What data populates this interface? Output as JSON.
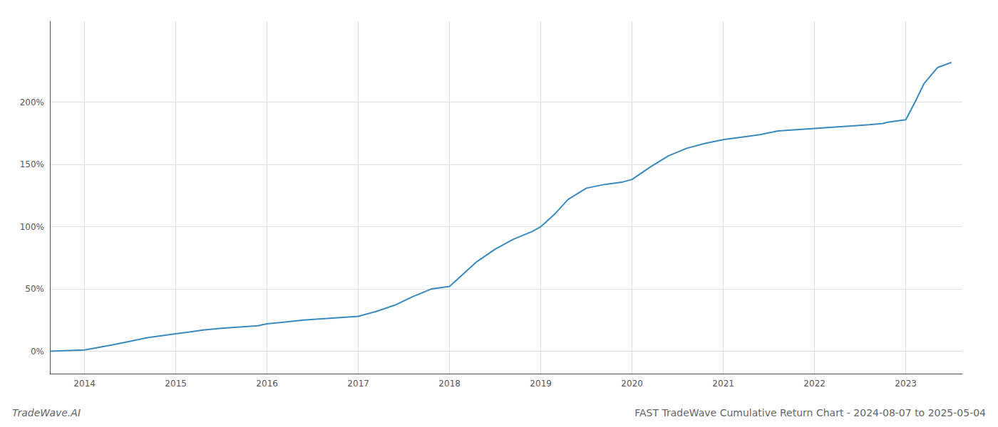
{
  "chart_data": {
    "type": "line",
    "title": "FAST TradeWave Cumulative Return Chart - 2024-08-07 to 2025-05-04",
    "annotations": [
      "TradeWave.AI"
    ],
    "color": "#3a8abf",
    "x": [
      2013.62,
      2014.0,
      2014.15,
      2014.3,
      2014.5,
      2014.7,
      2014.9,
      2015.0,
      2015.15,
      2015.3,
      2015.5,
      2015.7,
      2015.9,
      2016.0,
      2016.2,
      2016.4,
      2016.6,
      2016.8,
      2017.0,
      2017.2,
      2017.4,
      2017.6,
      2017.8,
      2018.0,
      2018.15,
      2018.3,
      2018.5,
      2018.7,
      2018.9,
      2019.0,
      2019.15,
      2019.3,
      2019.5,
      2019.7,
      2019.9,
      2020.0,
      2020.2,
      2020.4,
      2020.6,
      2020.8,
      2021.0,
      2021.2,
      2021.4,
      2021.6,
      2021.8,
      2022.0,
      2022.2,
      2022.4,
      2022.6,
      2022.75,
      2022.8,
      2022.9,
      2023.0,
      2023.1,
      2023.2,
      2023.35,
      2023.5
    ],
    "values": [
      0,
      1,
      3,
      5,
      8,
      11,
      13,
      14,
      15.5,
      17,
      18.5,
      19.5,
      20.5,
      22,
      23.5,
      25,
      26,
      27,
      28,
      32,
      37,
      44,
      50,
      52,
      62,
      72,
      82,
      90,
      96,
      100,
      110,
      122,
      131,
      134,
      136,
      138,
      148,
      157,
      163,
      167,
      170,
      172,
      174,
      177,
      178,
      179,
      180,
      181,
      182,
      183,
      184,
      185,
      186,
      200,
      215,
      228,
      232
    ],
    "xlim": [
      2013.62,
      2023.62
    ],
    "xticks": [
      2014,
      2015,
      2016,
      2017,
      2018,
      2019,
      2020,
      2021,
      2022,
      2023
    ],
    "ylim": [
      -18,
      265
    ],
    "yticks": [
      {
        "value": 0,
        "label": "0%"
      },
      {
        "value": 50,
        "label": "50%"
      },
      {
        "value": 100,
        "label": "100%"
      },
      {
        "value": 150,
        "label": "150%"
      },
      {
        "value": 200,
        "label": "200%"
      }
    ],
    "grid": true
  }
}
